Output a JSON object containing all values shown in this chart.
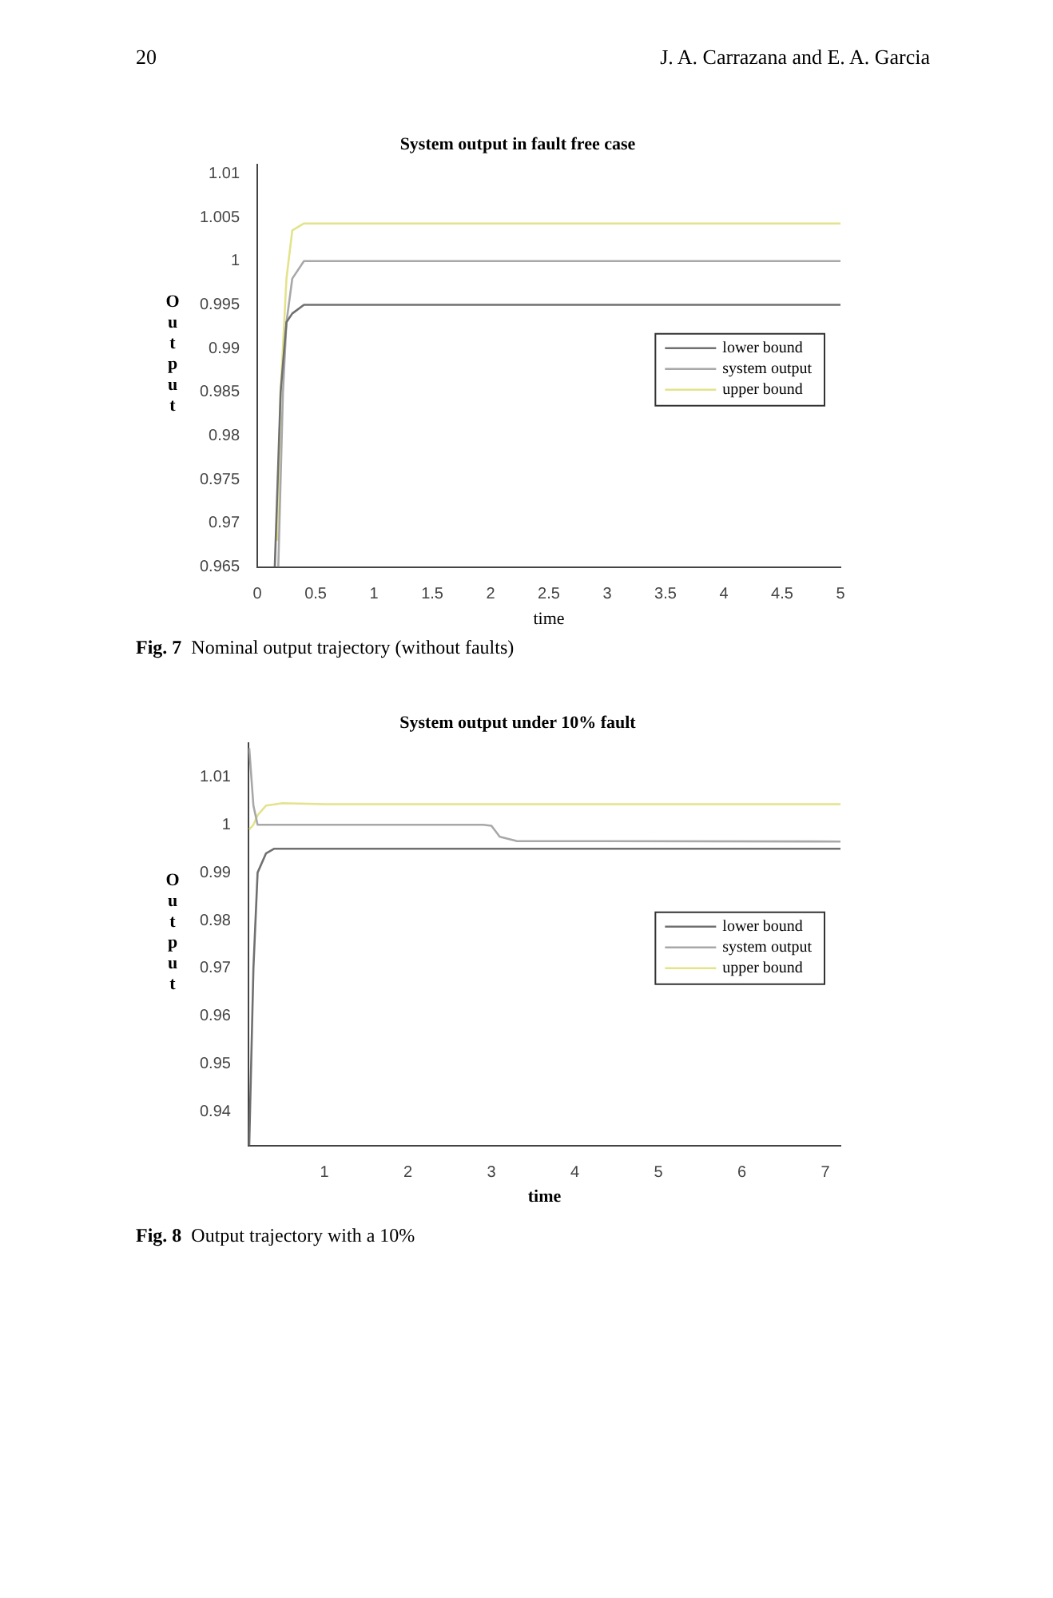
{
  "chart_data": [
    {
      "type": "line",
      "title": "System output in fault free case",
      "xlabel": "time",
      "ylabel": "Output",
      "xlim": [
        0,
        5
      ],
      "ylim": [
        0.965,
        1.011
      ],
      "xticks": [
        0,
        0.5,
        1,
        1.5,
        2,
        2.5,
        3,
        3.5,
        4,
        4.5,
        5
      ],
      "yticks": [
        0.965,
        0.97,
        0.975,
        0.98,
        0.985,
        0.99,
        0.995,
        1,
        1.005,
        1.01
      ],
      "grid": false,
      "legend": "right",
      "marker": "none",
      "line_style": "solid",
      "annotations": [
        "20",
        "J. A. Carrazana and E. A. Garcia",
        "Fig. 7 Nominal output trajectory (without faults)"
      ],
      "series": [
        {
          "name": "lower bound",
          "color": "#707070",
          "x": [
            0.15,
            0.2,
            0.25,
            0.3,
            0.4,
            1,
            5
          ],
          "values": [
            0.965,
            0.985,
            0.993,
            0.994,
            0.995,
            0.995,
            0.995
          ]
        },
        {
          "name": "system output",
          "color": "#a8a8a8",
          "x": [
            0.18,
            0.22,
            0.25,
            0.3,
            0.4,
            1,
            5
          ],
          "values": [
            0.965,
            0.985,
            0.993,
            0.998,
            1.0,
            1.0,
            1.0
          ]
        },
        {
          "name": "upper bound",
          "color": "#e3e38c",
          "x": [
            0.17,
            0.2,
            0.25,
            0.3,
            0.4,
            1,
            5
          ],
          "values": [
            0.968,
            0.985,
            0.998,
            1.0035,
            1.0043,
            1.0043,
            1.0043
          ]
        }
      ]
    },
    {
      "type": "line",
      "title": "System output under 10% fault",
      "xlabel": "time",
      "ylabel": "Output",
      "xlim": [
        0.09,
        7.18
      ],
      "ylim": [
        0.933,
        1.017
      ],
      "xticks": [
        1,
        2,
        3,
        4,
        5,
        6,
        7
      ],
      "yticks": [
        0.94,
        0.95,
        0.96,
        0.97,
        0.98,
        0.99,
        1,
        1.01
      ],
      "grid": false,
      "legend": "right",
      "marker": "none",
      "line_style": "solid",
      "annotations": [
        "Fig. 8 Output trajectory with a 10%"
      ],
      "series": [
        {
          "name": "lower bound",
          "color": "#707070",
          "x": [
            0.1,
            0.15,
            0.2,
            0.3,
            0.4,
            1,
            7.18
          ],
          "values": [
            0.933,
            0.97,
            0.99,
            0.994,
            0.995,
            0.995,
            0.995
          ]
        },
        {
          "name": "system output",
          "color": "#a8a8a8",
          "x": [
            0.1,
            0.15,
            0.2,
            0.3,
            1,
            2.9,
            3.0,
            3.1,
            3.3,
            7.18
          ],
          "values": [
            1.016,
            1.004,
            1.0,
            1.0,
            1.0,
            1.0,
            0.9998,
            0.9975,
            0.9966,
            0.9965
          ]
        },
        {
          "name": "upper bound",
          "color": "#e3e38c",
          "x": [
            0.1,
            0.15,
            0.2,
            0.3,
            0.5,
            1,
            7.18
          ],
          "values": [
            0.999,
            1.0,
            1.002,
            1.004,
            1.0045,
            1.0043,
            1.0043
          ]
        }
      ]
    }
  ]
}
